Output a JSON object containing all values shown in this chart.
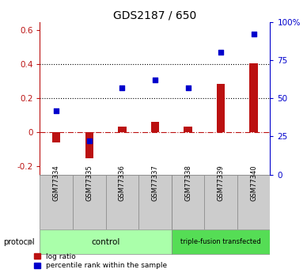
{
  "title": "GDS2187 / 650",
  "samples": [
    "GSM77334",
    "GSM77335",
    "GSM77336",
    "GSM77337",
    "GSM77338",
    "GSM77339",
    "GSM77340"
  ],
  "log_ratio": [
    -0.06,
    -0.155,
    0.035,
    0.06,
    0.035,
    0.285,
    0.405
  ],
  "percentile_rank_pct": [
    42,
    22,
    57,
    62,
    57,
    80,
    92
  ],
  "ylim_left": [
    -0.25,
    0.65
  ],
  "ylim_right": [
    0,
    100
  ],
  "yticks_left": [
    -0.2,
    0.0,
    0.2,
    0.4,
    0.6
  ],
  "ytick_labels_left": [
    "-0.2",
    "0",
    "0.2",
    "0.4",
    "0.6"
  ],
  "yticks_right": [
    0,
    25,
    50,
    75,
    100
  ],
  "ytick_labels_right": [
    "0",
    "25",
    "50",
    "75",
    "100%"
  ],
  "hlines": [
    0.2,
    0.4
  ],
  "bar_color": "#bb1111",
  "dot_color": "#0000cc",
  "n_control": 4,
  "control_label": "control",
  "triple_fusion_label": "triple-fusion transfected",
  "protocol_label": "protocol",
  "legend_bar_label": "log ratio",
  "legend_dot_label": "percentile rank within the sample",
  "control_bg_color": "#aaffaa",
  "triple_fusion_bg_color": "#55dd55",
  "sample_box_color": "#cccccc",
  "background_color": "#ffffff",
  "title_fontsize": 10,
  "axis_fontsize": 7.5,
  "bar_width": 0.25
}
